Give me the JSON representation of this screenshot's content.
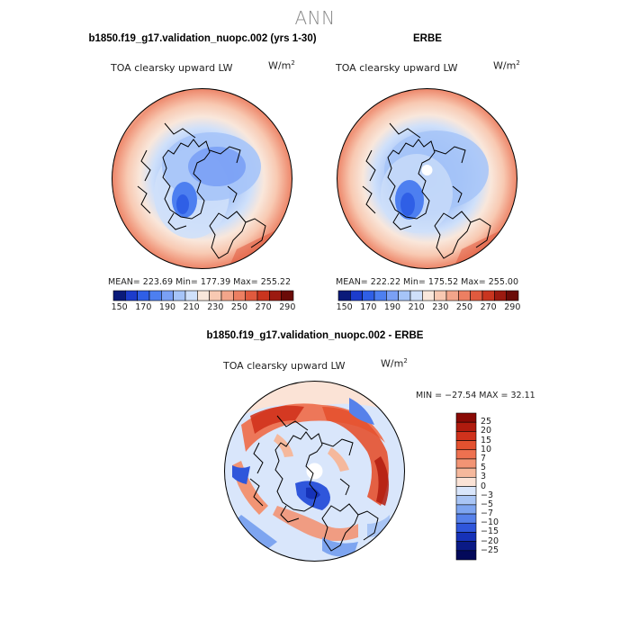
{
  "figure": {
    "title": "ANN",
    "unit_base": "W/m",
    "unit_exp": "2"
  },
  "chart_data": [
    {
      "type": "heatmap",
      "projection": "north-polar-stereographic",
      "title": "b1850.f19_g17.validation_nuopc.002 (yrs 1-30)",
      "variable": "TOA clearsky upward LW",
      "units": "W/m^2",
      "stats_text": "MEAN= 223.69   Min= 177.39   Max= 255.22",
      "mean": 223.69,
      "min": 177.39,
      "max": 255.22,
      "colorbar": {
        "orientation": "horizontal",
        "tick_labels": [
          "150",
          "170",
          "190",
          "210",
          "230",
          "250",
          "270",
          "290"
        ],
        "colors": [
          "#0a1a7a",
          "#1c3ccc",
          "#2f5fe6",
          "#4d7ff0",
          "#7aa0f5",
          "#a6c4f8",
          "#cfe0fa",
          "#f9e7db",
          "#f8c9b2",
          "#f3a58a",
          "#ec7f62",
          "#e05a3e",
          "#c9351f",
          "#9c1a10",
          "#6b0b08"
        ]
      }
    },
    {
      "type": "heatmap",
      "projection": "north-polar-stereographic",
      "title": "ERBE",
      "variable": "TOA clearsky upward LW",
      "units": "W/m^2",
      "stats_text": "MEAN= 222.22   Min= 175.52   Max= 255.00",
      "mean": 222.22,
      "min": 175.52,
      "max": 255.0,
      "colorbar": {
        "orientation": "horizontal",
        "tick_labels": [
          "150",
          "170",
          "190",
          "210",
          "230",
          "250",
          "270",
          "290"
        ],
        "colors": [
          "#0a1a7a",
          "#1c3ccc",
          "#2f5fe6",
          "#4d7ff0",
          "#7aa0f5",
          "#a6c4f8",
          "#cfe0fa",
          "#f9e7db",
          "#f8c9b2",
          "#f3a58a",
          "#ec7f62",
          "#e05a3e",
          "#c9351f",
          "#9c1a10",
          "#6b0b08"
        ]
      }
    },
    {
      "type": "heatmap",
      "projection": "north-polar-stereographic",
      "title": "b1850.f19_g17.validation_nuopc.002 - ERBE",
      "variable": "TOA clearsky upward LW",
      "units": "W/m^2",
      "stats_text": "MIN = −27.54  MAX =  32.11",
      "min": -27.54,
      "max": 32.11,
      "colorbar": {
        "orientation": "vertical",
        "tick_labels": [
          "25",
          "20",
          "15",
          "10",
          "7",
          "5",
          "3",
          "0",
          "−3",
          "−5",
          "−7",
          "−10",
          "−15",
          "−20",
          "−25"
        ],
        "colors": [
          "#8a0a05",
          "#b01b0e",
          "#d0321c",
          "#e4512f",
          "#ee7150",
          "#f29474",
          "#f5b89c",
          "#fbe3d6",
          "#d9e6fb",
          "#a9c5f5",
          "#7ea5f0",
          "#5681ea",
          "#2f56db",
          "#1632b8",
          "#0a1a86",
          "#03095a"
        ]
      }
    }
  ]
}
